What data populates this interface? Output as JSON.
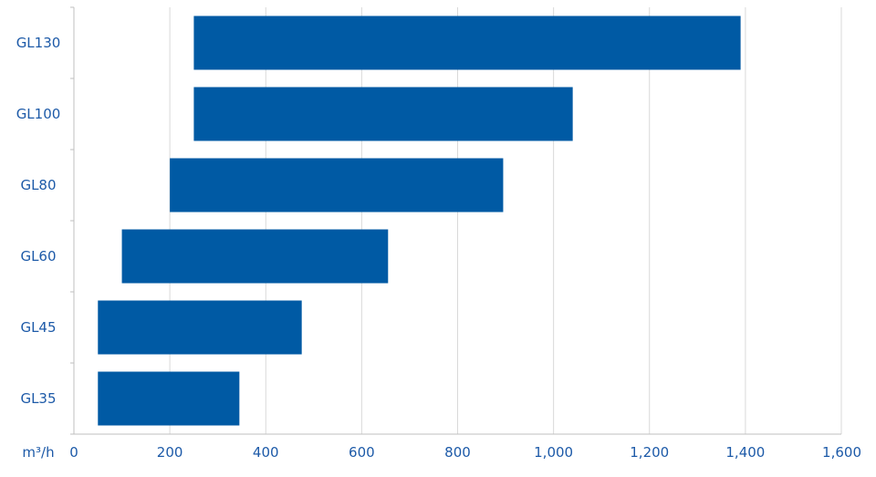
{
  "chart_data": {
    "type": "bar",
    "orientation": "horizontal",
    "unit_label": "m³/h",
    "categories": [
      "GL130",
      "GL100",
      "GL80",
      "GL60",
      "GL45",
      "GL35"
    ],
    "ranges": [
      {
        "category": "GL130",
        "start": 250,
        "end": 1390
      },
      {
        "category": "GL100",
        "start": 250,
        "end": 1040
      },
      {
        "category": "GL80",
        "start": 200,
        "end": 895
      },
      {
        "category": "GL60",
        "start": 100,
        "end": 655
      },
      {
        "category": "GL45",
        "start": 50,
        "end": 475
      },
      {
        "category": "GL35",
        "start": 50,
        "end": 345
      }
    ],
    "xlim": [
      0,
      1600
    ],
    "xticks": [
      0,
      200,
      400,
      600,
      800,
      1000,
      1200,
      1400,
      1600
    ],
    "xtick_labels": [
      "0",
      "200",
      "400",
      "600",
      "800",
      "1,000",
      "1,200",
      "1,400",
      "1,600"
    ],
    "grid": "vertical",
    "bar_color": "#005aa4",
    "text_color": "#1d5aa8",
    "grid_color": "#d9d9d9"
  }
}
